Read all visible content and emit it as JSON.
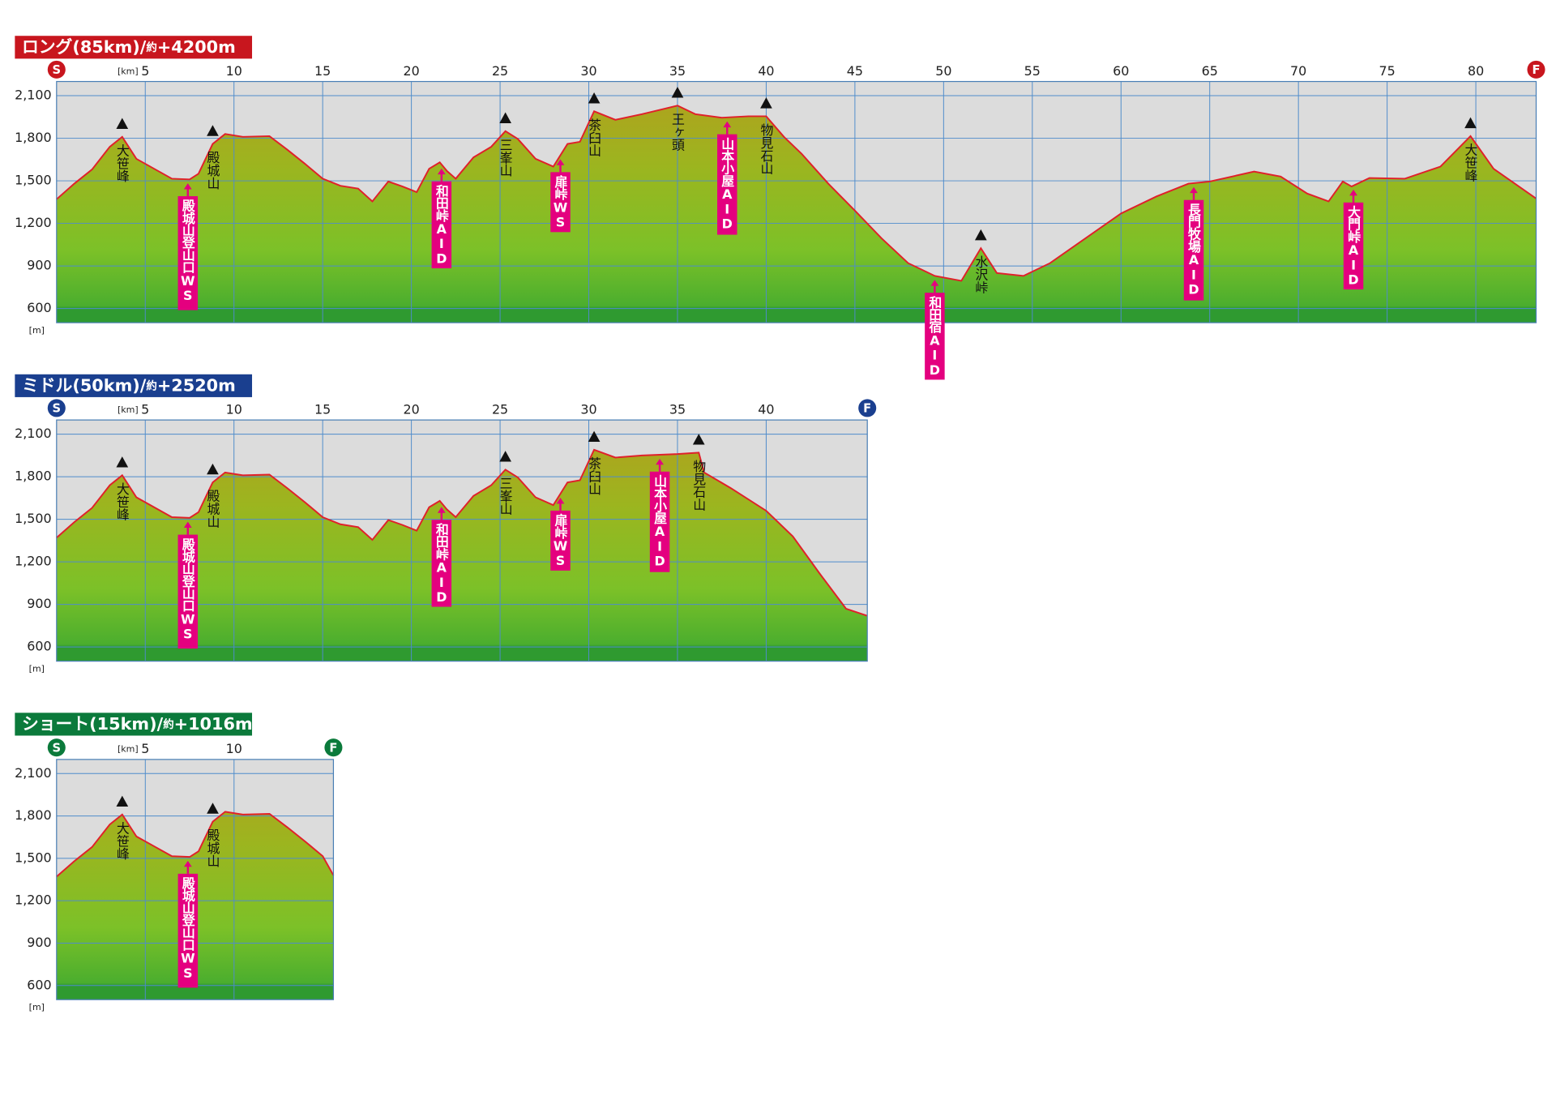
{
  "chart_data": [
    {
      "type": "area",
      "title": "ロング(85km)/",
      "title_note": "約",
      "title_value": "+4200m",
      "color": "#c8161e",
      "line_color": "#e0202a",
      "start_label": "S",
      "finish_label": "F",
      "x_unit": "[km]",
      "y_unit": "[m]",
      "x": [
        0,
        1,
        2,
        3,
        3.7,
        4.5,
        5.5,
        6.5,
        7.5,
        8,
        8.8,
        9.5,
        10.5,
        12,
        13,
        14,
        15,
        16,
        17,
        17.8,
        18.7,
        19.5,
        20.3,
        21,
        21.6,
        22,
        22.5,
        23.5,
        24.5,
        25.3,
        26,
        27,
        28,
        28.8,
        29.5,
        30.3,
        31.5,
        33,
        34,
        35,
        36,
        37.5,
        39,
        40,
        41,
        42,
        43.5,
        45,
        46.5,
        48,
        49.5,
        51,
        52.1,
        53,
        54.5,
        56,
        58,
        60,
        62,
        63.8,
        65,
        67.5,
        69,
        70.5,
        71.7,
        72.5,
        73,
        74,
        76,
        78,
        79.7,
        81,
        83.4
      ],
      "values": [
        1370,
        1480,
        1580,
        1740,
        1810,
        1655,
        1585,
        1515,
        1510,
        1550,
        1760,
        1830,
        1810,
        1815,
        1720,
        1620,
        1515,
        1465,
        1445,
        1355,
        1495,
        1460,
        1420,
        1585,
        1630,
        1570,
        1515,
        1665,
        1740,
        1850,
        1795,
        1655,
        1600,
        1760,
        1775,
        1990,
        1930,
        1970,
        2000,
        2030,
        1970,
        1945,
        1955,
        1955,
        1810,
        1690,
        1480,
        1290,
        1095,
        920,
        830,
        795,
        1025,
        850,
        830,
        920,
        1095,
        1270,
        1390,
        1480,
        1495,
        1565,
        1530,
        1410,
        1355,
        1495,
        1460,
        1520,
        1515,
        1600,
        1815,
        1585,
        1375
      ],
      "xlim": [
        0,
        83.4
      ],
      "ylim": [
        500,
        2200
      ],
      "xticks": [
        5,
        10,
        15,
        20,
        25,
        30,
        35,
        40,
        45,
        50,
        55,
        60,
        65,
        70,
        75,
        80
      ],
      "yticks": [
        {
          "value": 600,
          "label": "600"
        },
        {
          "value": 900,
          "label": "900"
        },
        {
          "value": 1200,
          "label": "1,200"
        },
        {
          "value": 1500,
          "label": "1,500"
        },
        {
          "value": 1800,
          "label": "1,800"
        },
        {
          "value": 2100,
          "label": "2,100"
        }
      ],
      "peaks": [
        {
          "x": 3.7,
          "label": "大笹峰"
        },
        {
          "x": 8.8,
          "label": "殿城山"
        },
        {
          "x": 25.3,
          "label": "三峯山"
        },
        {
          "x": 30.3,
          "label": "茶臼山"
        },
        {
          "x": 35,
          "label": "王ヶ頭"
        },
        {
          "x": 40,
          "label": "物見石山"
        },
        {
          "x": 52.1,
          "label": "水沢峠"
        },
        {
          "x": 79.7,
          "label": "大笹峰"
        }
      ],
      "aid_stations": [
        {
          "x": 7.4,
          "label": "殿城山登山口WS"
        },
        {
          "x": 21.7,
          "label": "和田峠AID"
        },
        {
          "x": 28.4,
          "label": "扉峠WS"
        },
        {
          "x": 37.8,
          "label": "山本小屋AID"
        },
        {
          "x": 49.5,
          "label": "和田宿AID"
        },
        {
          "x": 64.1,
          "label": "長門牧場AID"
        },
        {
          "x": 73.1,
          "label": "大門峠AID"
        }
      ]
    },
    {
      "type": "area",
      "title": "ミドル(50km)/",
      "title_note": "約",
      "title_value": "+2520m",
      "color": "#1a3f8f",
      "line_color": "#e0202a",
      "start_label": "S",
      "finish_label": "F",
      "x_unit": "[km]",
      "y_unit": "[m]",
      "x": [
        0,
        1,
        2,
        3,
        3.7,
        4.5,
        5.5,
        6.5,
        7.5,
        8,
        8.8,
        9.5,
        10.5,
        12,
        13,
        14,
        15,
        16,
        17,
        17.8,
        18.7,
        19.5,
        20.3,
        21,
        21.6,
        22,
        22.5,
        23.5,
        24.5,
        25.3,
        26,
        27,
        28,
        28.8,
        29.5,
        30.3,
        31.5,
        33,
        35,
        36.2,
        36.5,
        38,
        40,
        41.5,
        43,
        44.5,
        45.7
      ],
      "values": [
        1370,
        1480,
        1580,
        1740,
        1810,
        1655,
        1585,
        1515,
        1510,
        1550,
        1760,
        1830,
        1810,
        1815,
        1720,
        1620,
        1515,
        1465,
        1445,
        1355,
        1495,
        1460,
        1420,
        1585,
        1630,
        1570,
        1515,
        1665,
        1740,
        1850,
        1795,
        1655,
        1600,
        1760,
        1775,
        1990,
        1935,
        1950,
        1960,
        1970,
        1830,
        1720,
        1560,
        1380,
        1120,
        870,
        820
      ],
      "xlim": [
        0,
        45.7
      ],
      "ylim": [
        500,
        2200
      ],
      "xticks": [
        5,
        10,
        15,
        20,
        25,
        30,
        35,
        40
      ],
      "yticks": [
        {
          "value": 600,
          "label": "600"
        },
        {
          "value": 900,
          "label": "900"
        },
        {
          "value": 1200,
          "label": "1,200"
        },
        {
          "value": 1500,
          "label": "1,500"
        },
        {
          "value": 1800,
          "label": "1,800"
        },
        {
          "value": 2100,
          "label": "2,100"
        }
      ],
      "peaks": [
        {
          "x": 3.7,
          "label": "大笹峰"
        },
        {
          "x": 8.8,
          "label": "殿城山"
        },
        {
          "x": 25.3,
          "label": "三峯山"
        },
        {
          "x": 30.3,
          "label": "茶臼山"
        },
        {
          "x": 36.2,
          "label": "物見石山"
        }
      ],
      "aid_stations": [
        {
          "x": 7.4,
          "label": "殿城山登山口WS"
        },
        {
          "x": 21.7,
          "label": "和田峠AID"
        },
        {
          "x": 28.4,
          "label": "扉峠WS"
        },
        {
          "x": 34,
          "label": "山本小屋AID"
        }
      ]
    },
    {
      "type": "area",
      "title": "ショート(15km)/",
      "title_note": "約",
      "title_value": "+1016m",
      "color": "#0b7a3b",
      "line_color": "#e0202a",
      "start_label": "S",
      "finish_label": "F",
      "x_unit": "[km]",
      "y_unit": "[m]",
      "x": [
        0,
        1,
        2,
        3,
        3.7,
        4.5,
        5.5,
        6.5,
        7.5,
        8,
        8.8,
        9.5,
        10.5,
        12,
        13,
        14,
        15,
        15.6
      ],
      "values": [
        1370,
        1480,
        1580,
        1740,
        1810,
        1655,
        1585,
        1515,
        1510,
        1550,
        1760,
        1830,
        1810,
        1815,
        1720,
        1620,
        1515,
        1380
      ],
      "xlim": [
        0,
        15.6
      ],
      "ylim": [
        500,
        2200
      ],
      "xticks": [
        5,
        10
      ],
      "yticks": [
        {
          "value": 600,
          "label": "600"
        },
        {
          "value": 900,
          "label": "900"
        },
        {
          "value": 1200,
          "label": "1,200"
        },
        {
          "value": 1500,
          "label": "1,500"
        },
        {
          "value": 1800,
          "label": "1,800"
        },
        {
          "value": 2100,
          "label": "2,100"
        }
      ],
      "peaks": [
        {
          "x": 3.7,
          "label": "大笹峰"
        },
        {
          "x": 8.8,
          "label": "殿城山"
        }
      ],
      "aid_stations": [
        {
          "x": 7.4,
          "label": "殿城山登山口WS"
        }
      ]
    }
  ]
}
